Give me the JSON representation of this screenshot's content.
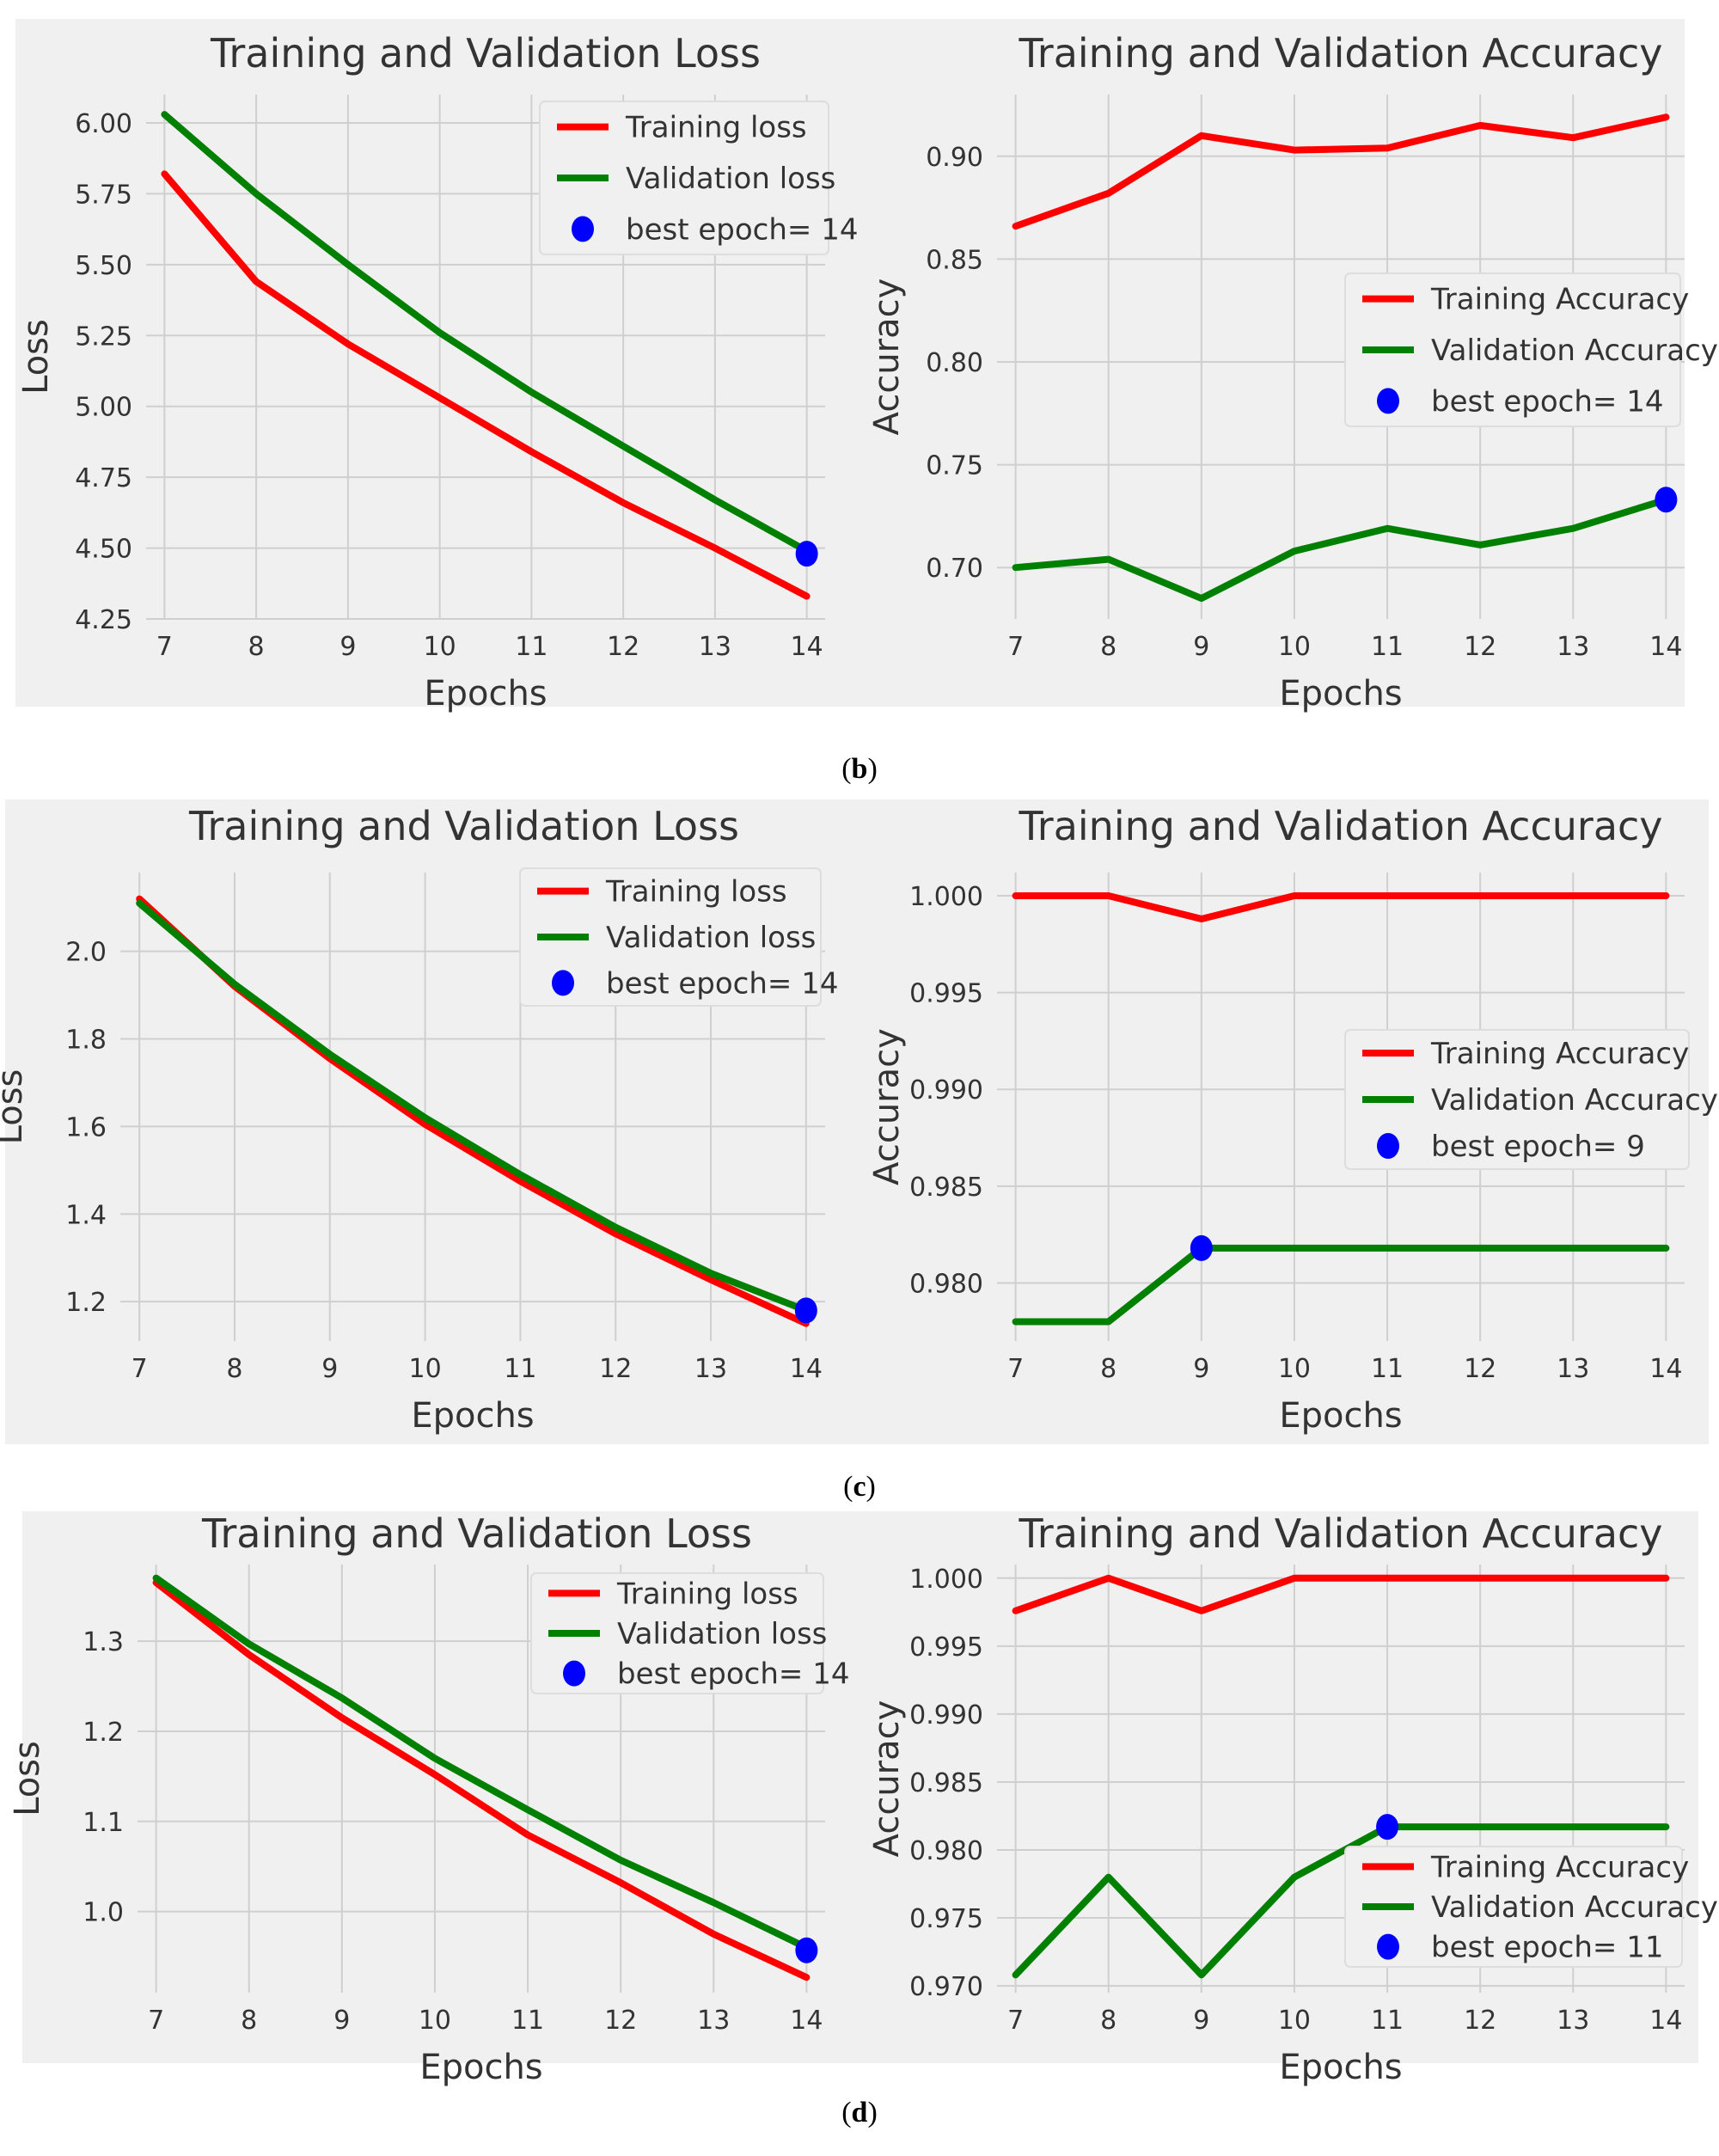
{
  "figure": {
    "panels": [
      {
        "caption_open": "(",
        "caption_letter": "b",
        "caption_close": ")",
        "charts": [
          {
            "kind": "loss",
            "chart_data": {
              "type": "line",
              "title": "Training and Validation Loss",
              "xlabel": "Epochs",
              "ylabel": "Loss",
              "x": [
                7,
                8,
                9,
                10,
                11,
                12,
                13,
                14
              ],
              "xticks": [
                "7",
                "8",
                "9",
                "10",
                "11",
                "12",
                "13",
                "14"
              ],
              "xlim": [
                6.8,
                14.2
              ],
              "ylim": [
                4.25,
                6.1
              ],
              "yticks": [
                "4.25",
                "4.50",
                "4.75",
                "5.00",
                "5.25",
                "5.50",
                "5.75",
                "6.00"
              ],
              "ytick_values": [
                4.25,
                4.5,
                4.75,
                5.0,
                5.25,
                5.5,
                5.75,
                6.0
              ],
              "series": [
                {
                  "name": "Training loss",
                  "color": "#ff0000",
                  "values": [
                    5.82,
                    5.44,
                    5.22,
                    5.03,
                    4.84,
                    4.66,
                    4.5,
                    4.33
                  ]
                },
                {
                  "name": "Validation loss",
                  "color": "#008000",
                  "values": [
                    6.03,
                    5.75,
                    5.5,
                    5.26,
                    5.05,
                    4.86,
                    4.67,
                    4.49
                  ]
                }
              ],
              "best": {
                "label": "best epoch= 14",
                "x": 14,
                "y": 4.48,
                "color": "#0000ff"
              },
              "legend_position": "top-right"
            }
          },
          {
            "kind": "accuracy",
            "chart_data": {
              "type": "line",
              "title": "Training and Validation Accuracy",
              "xlabel": "Epochs",
              "ylabel": "Accuracy",
              "x": [
                7,
                8,
                9,
                10,
                11,
                12,
                13,
                14
              ],
              "xticks": [
                "7",
                "8",
                "9",
                "10",
                "11",
                "12",
                "13",
                "14"
              ],
              "xlim": [
                6.8,
                14.2
              ],
              "ylim": [
                0.675,
                0.93
              ],
              "yticks": [
                "0.70",
                "0.75",
                "0.80",
                "0.85",
                "0.90"
              ],
              "ytick_values": [
                0.7,
                0.75,
                0.8,
                0.85,
                0.9
              ],
              "series": [
                {
                  "name": "Training Accuracy",
                  "color": "#ff0000",
                  "values": [
                    0.866,
                    0.882,
                    0.91,
                    0.903,
                    0.904,
                    0.915,
                    0.909,
                    0.919
                  ]
                },
                {
                  "name": "Validation Accuracy",
                  "color": "#008000",
                  "values": [
                    0.7,
                    0.704,
                    0.685,
                    0.708,
                    0.719,
                    0.711,
                    0.719,
                    0.733
                  ]
                }
              ],
              "best": {
                "label": "best epoch= 14",
                "x": 14,
                "y": 0.733,
                "color": "#0000ff"
              },
              "legend_position": "center-right"
            }
          }
        ]
      },
      {
        "caption_open": "(",
        "caption_letter": "c",
        "caption_close": ")",
        "charts": [
          {
            "kind": "loss",
            "chart_data": {
              "type": "line",
              "title": "Training and Validation Loss",
              "xlabel": "Epochs",
              "ylabel": "Loss",
              "x": [
                7,
                8,
                9,
                10,
                11,
                12,
                13,
                14
              ],
              "xticks": [
                "7",
                "8",
                "9",
                "10",
                "11",
                "12",
                "13",
                "14"
              ],
              "xlim": [
                6.8,
                14.2
              ],
              "ylim": [
                1.11,
                2.18
              ],
              "yticks": [
                "1.2",
                "1.4",
                "1.6",
                "1.8",
                "2.0"
              ],
              "ytick_values": [
                1.2,
                1.4,
                1.6,
                1.8,
                2.0
              ],
              "series": [
                {
                  "name": "Training loss",
                  "color": "#ff0000",
                  "values": [
                    2.12,
                    1.92,
                    1.755,
                    1.605,
                    1.475,
                    1.355,
                    1.25,
                    1.15
                  ]
                },
                {
                  "name": "Validation loss",
                  "color": "#008000",
                  "values": [
                    2.11,
                    1.925,
                    1.765,
                    1.62,
                    1.49,
                    1.37,
                    1.265,
                    1.18
                  ]
                }
              ],
              "best": {
                "label": "best epoch= 14",
                "x": 14,
                "y": 1.18,
                "color": "#0000ff"
              },
              "legend_position": "top-right"
            }
          },
          {
            "kind": "accuracy",
            "chart_data": {
              "type": "line",
              "title": "Training and Validation Accuracy",
              "xlabel": "Epochs",
              "ylabel": "Accuracy",
              "x": [
                7,
                8,
                9,
                10,
                11,
                12,
                13,
                14
              ],
              "xticks": [
                "7",
                "8",
                "9",
                "10",
                "11",
                "12",
                "13",
                "14"
              ],
              "xlim": [
                6.8,
                14.2
              ],
              "ylim": [
                0.977,
                1.0012
              ],
              "yticks": [
                "0.980",
                "0.985",
                "0.990",
                "0.995",
                "1.000"
              ],
              "ytick_values": [
                0.98,
                0.985,
                0.99,
                0.995,
                1.0
              ],
              "series": [
                {
                  "name": "Training Accuracy",
                  "color": "#ff0000",
                  "values": [
                    1.0,
                    1.0,
                    0.9988,
                    1.0,
                    1.0,
                    1.0,
                    1.0,
                    1.0
                  ]
                },
                {
                  "name": "Validation Accuracy",
                  "color": "#008000",
                  "values": [
                    0.978,
                    0.978,
                    0.9818,
                    0.9818,
                    0.9818,
                    0.9818,
                    0.9818,
                    0.9818
                  ]
                }
              ],
              "best": {
                "label": "best epoch= 9",
                "x": 9,
                "y": 0.9818,
                "color": "#0000ff"
              },
              "legend_position": "center-right"
            }
          }
        ]
      },
      {
        "caption_open": "(",
        "caption_letter": "d",
        "caption_close": ")",
        "charts": [
          {
            "kind": "loss",
            "chart_data": {
              "type": "line",
              "title": "Training and Validation Loss",
              "xlabel": "Epochs",
              "ylabel": "Loss",
              "x": [
                7,
                8,
                9,
                10,
                11,
                12,
                13,
                14
              ],
              "xticks": [
                "7",
                "8",
                "9",
                "10",
                "11",
                "12",
                "13",
                "14"
              ],
              "xlim": [
                6.8,
                14.2
              ],
              "ylim": [
                0.91,
                1.385
              ],
              "yticks": [
                "1.0",
                "1.1",
                "1.2",
                "1.3"
              ],
              "ytick_values": [
                1.0,
                1.1,
                1.2,
                1.3
              ],
              "series": [
                {
                  "name": "Training loss",
                  "color": "#ff0000",
                  "values": [
                    1.365,
                    1.285,
                    1.215,
                    1.152,
                    1.085,
                    1.032,
                    0.975,
                    0.927
                  ]
                },
                {
                  "name": "Validation loss",
                  "color": "#008000",
                  "values": [
                    1.37,
                    1.297,
                    1.237,
                    1.17,
                    1.113,
                    1.057,
                    1.01,
                    0.96
                  ]
                }
              ],
              "best": {
                "label": "best epoch= 14",
                "x": 14,
                "y": 0.957,
                "color": "#0000ff"
              },
              "legend_position": "top-right"
            }
          },
          {
            "kind": "accuracy",
            "chart_data": {
              "type": "line",
              "title": "Training and Validation Accuracy",
              "xlabel": "Epochs",
              "ylabel": "Accuracy",
              "x": [
                7,
                8,
                9,
                10,
                11,
                12,
                13,
                14
              ],
              "xticks": [
                "7",
                "8",
                "9",
                "10",
                "11",
                "12",
                "13",
                "14"
              ],
              "xlim": [
                6.8,
                14.2
              ],
              "ylim": [
                0.9695,
                1.001
              ],
              "yticks": [
                "0.970",
                "0.975",
                "0.980",
                "0.985",
                "0.990",
                "0.995",
                "1.000"
              ],
              "ytick_values": [
                0.97,
                0.975,
                0.98,
                0.985,
                0.99,
                0.995,
                1.0
              ],
              "series": [
                {
                  "name": "Training Accuracy",
                  "color": "#ff0000",
                  "values": [
                    0.9976,
                    1.0,
                    0.9976,
                    1.0,
                    1.0,
                    1.0,
                    1.0,
                    1.0
                  ]
                },
                {
                  "name": "Validation Accuracy",
                  "color": "#008000",
                  "values": [
                    0.9708,
                    0.978,
                    0.9708,
                    0.978,
                    0.9817,
                    0.9817,
                    0.9817,
                    0.9817
                  ]
                }
              ],
              "best": {
                "label": "best epoch= 11",
                "x": 11,
                "y": 0.9817,
                "color": "#0000ff"
              },
              "legend_position": "bottom-right"
            }
          }
        ]
      }
    ]
  }
}
